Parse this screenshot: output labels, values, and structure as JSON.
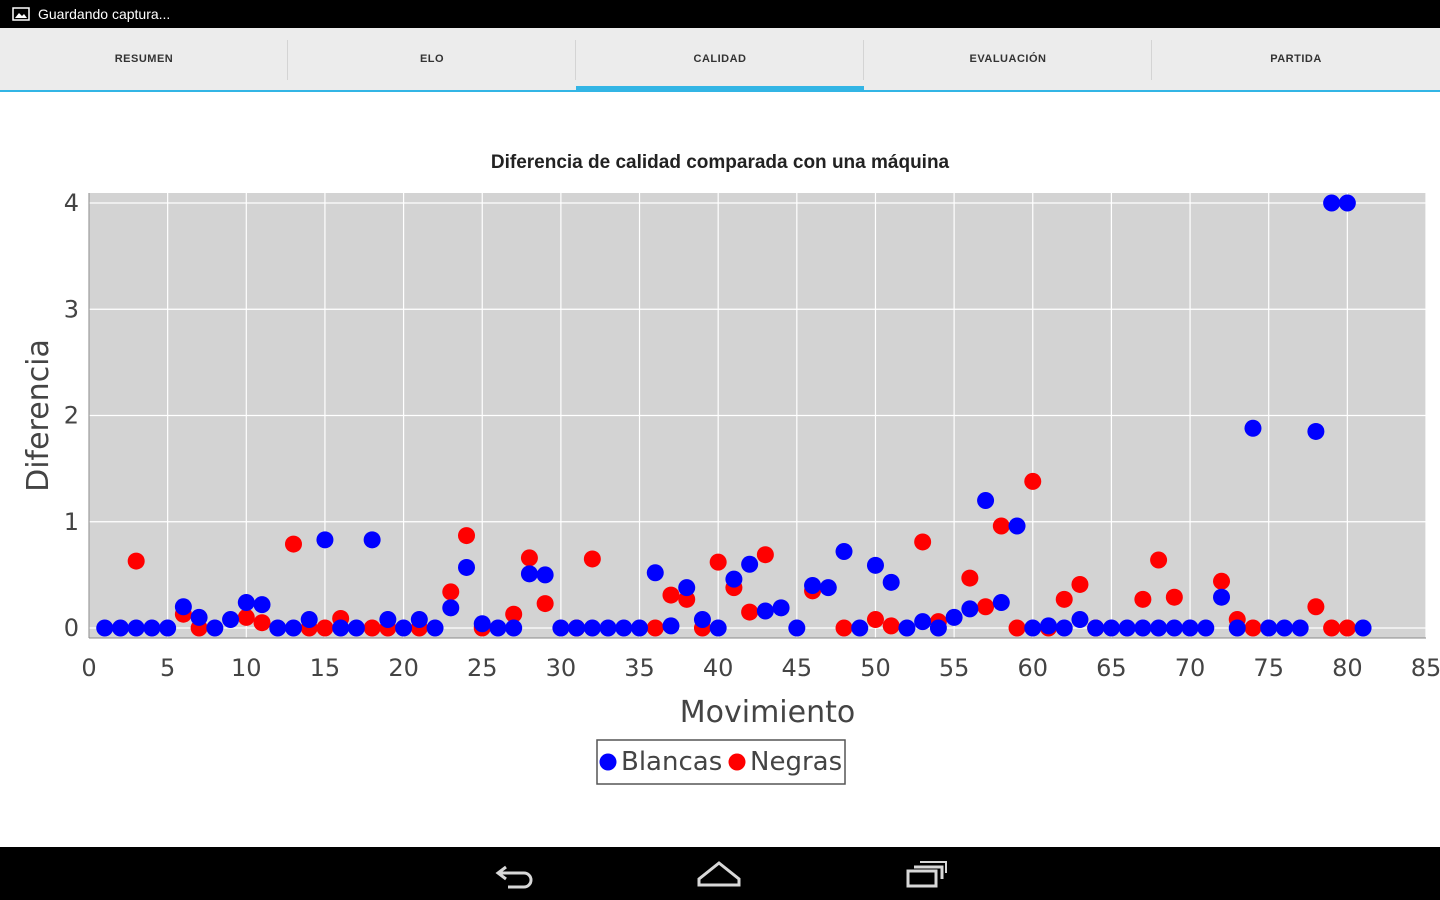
{
  "status_bar": {
    "notification_text": "Guardando captura..."
  },
  "tabs": [
    {
      "label": "RESUMEN",
      "selected": false
    },
    {
      "label": "ELO",
      "selected": false
    },
    {
      "label": "CALIDAD",
      "selected": true
    },
    {
      "label": "EVALUACIÓN",
      "selected": false
    },
    {
      "label": "PARTIDA",
      "selected": false
    }
  ],
  "colors": {
    "accent": "#33b5e5",
    "white_series": "#0000ff",
    "black_series": "#ff0000",
    "plot_bg": "#d3d3d3"
  },
  "chart_data": {
    "type": "scatter",
    "title": "Diferencia de calidad comparada con una máquina",
    "xlabel": "Movimiento",
    "ylabel": "Diferencia",
    "xlim": [
      0,
      85
    ],
    "ylim": [
      0,
      4
    ],
    "xticks": [
      0,
      5,
      10,
      15,
      20,
      25,
      30,
      35,
      40,
      45,
      50,
      55,
      60,
      65,
      70,
      75,
      80,
      85
    ],
    "yticks": [
      0,
      1,
      2,
      3,
      4
    ],
    "grid": true,
    "legend_position": "bottom-center",
    "series": [
      {
        "name": "Blancas",
        "color": "#0000ff",
        "x": [
          1,
          2,
          3,
          4,
          5,
          6,
          7,
          8,
          9,
          10,
          11,
          12,
          13,
          14,
          15,
          16,
          17,
          18,
          19,
          20,
          21,
          22,
          23,
          24,
          25,
          26,
          27,
          28,
          29,
          30,
          31,
          32,
          33,
          34,
          35,
          36,
          37,
          38,
          39,
          40,
          41,
          42,
          43,
          44,
          45,
          46,
          47,
          48,
          49,
          50,
          51,
          52,
          53,
          54,
          55,
          56,
          57,
          58,
          59,
          60,
          61,
          62,
          63,
          64,
          65,
          66,
          67,
          68,
          69,
          70,
          71,
          72,
          73,
          74,
          75,
          76,
          77,
          78,
          79,
          80,
          81
        ],
        "y": [
          0,
          0,
          0,
          0,
          0,
          0.2,
          0.1,
          0,
          0.08,
          0.24,
          0.22,
          0,
          0,
          0.08,
          0.83,
          0,
          0,
          0.83,
          0.08,
          0,
          0.08,
          0,
          0.19,
          0.57,
          0.04,
          0,
          0,
          0.51,
          0.5,
          0,
          0,
          0,
          0,
          0,
          0,
          0.52,
          0.02,
          0.38,
          0.08,
          0,
          0.46,
          0.6,
          0.16,
          0.19,
          0,
          0.4,
          0.38,
          0.72,
          0,
          0.59,
          0.43,
          0,
          0.06,
          0,
          0.1,
          0.18,
          1.2,
          0.24,
          0.96,
          0,
          0.02,
          0,
          0.08,
          0,
          0,
          0,
          0,
          0,
          0,
          0,
          0,
          0.29,
          0,
          1.88,
          0,
          0,
          0,
          1.85,
          4,
          4,
          0
        ]
      },
      {
        "name": "Negras",
        "color": "#ff0000",
        "x": [
          3,
          6,
          7,
          10,
          11,
          13,
          14,
          15,
          16,
          18,
          19,
          21,
          23,
          24,
          25,
          27,
          28,
          29,
          31,
          32,
          36,
          37,
          38,
          39,
          40,
          41,
          42,
          43,
          46,
          48,
          50,
          51,
          53,
          54,
          56,
          57,
          58,
          59,
          60,
          61,
          62,
          63,
          64,
          67,
          68,
          69,
          72,
          73,
          74,
          78,
          79,
          80
        ],
        "y": [
          0.63,
          0.13,
          0,
          0.1,
          0.05,
          0.79,
          0,
          0,
          0.09,
          0,
          0,
          0,
          0.34,
          0.87,
          0,
          0.13,
          0.66,
          0.23,
          0,
          0.65,
          0,
          0.31,
          0.27,
          0,
          0.62,
          0.38,
          0.15,
          0.69,
          0.35,
          0,
          0.08,
          0.02,
          0.81,
          0.06,
          0.47,
          0.2,
          0.96,
          0,
          1.38,
          0,
          0.27,
          0.41,
          0,
          0.27,
          0.64,
          0.29,
          0.44,
          0.08,
          0,
          0.2,
          0,
          0
        ]
      }
    ]
  }
}
